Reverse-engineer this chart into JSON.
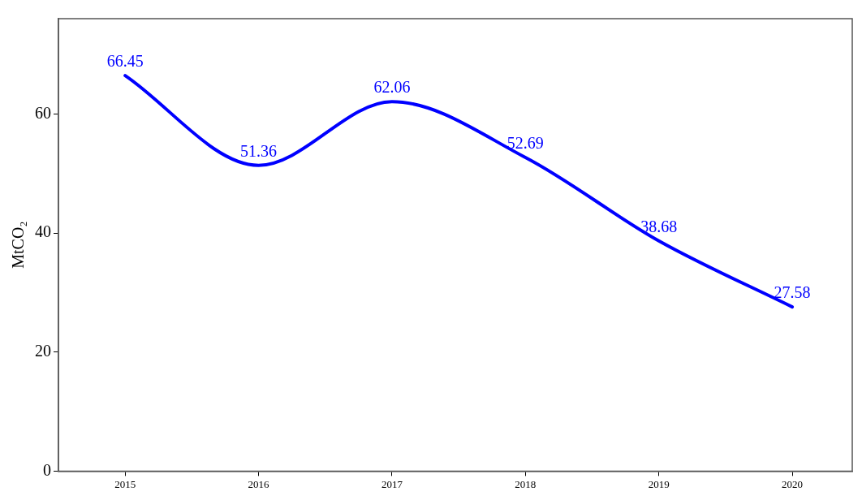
{
  "chart_data": {
    "type": "line",
    "ylabel": "MtCO₂",
    "x": [
      2015,
      2016,
      2017,
      2018,
      2019,
      2020
    ],
    "series": [
      {
        "color": "#0000ff",
        "values": [
          66.45,
          51.36,
          62.06,
          52.69,
          38.68,
          27.58
        ]
      }
    ],
    "xlim": [
      2014.5,
      2020.45
    ],
    "xticks": [
      2015,
      2016,
      2017,
      2018,
      2019,
      2020
    ],
    "ylim": [
      0,
      76
    ],
    "yticks": [
      0,
      20,
      40,
      60
    ],
    "data_labels": true,
    "grid": false,
    "legend": false,
    "marker": "none",
    "line_style": "solid"
  }
}
